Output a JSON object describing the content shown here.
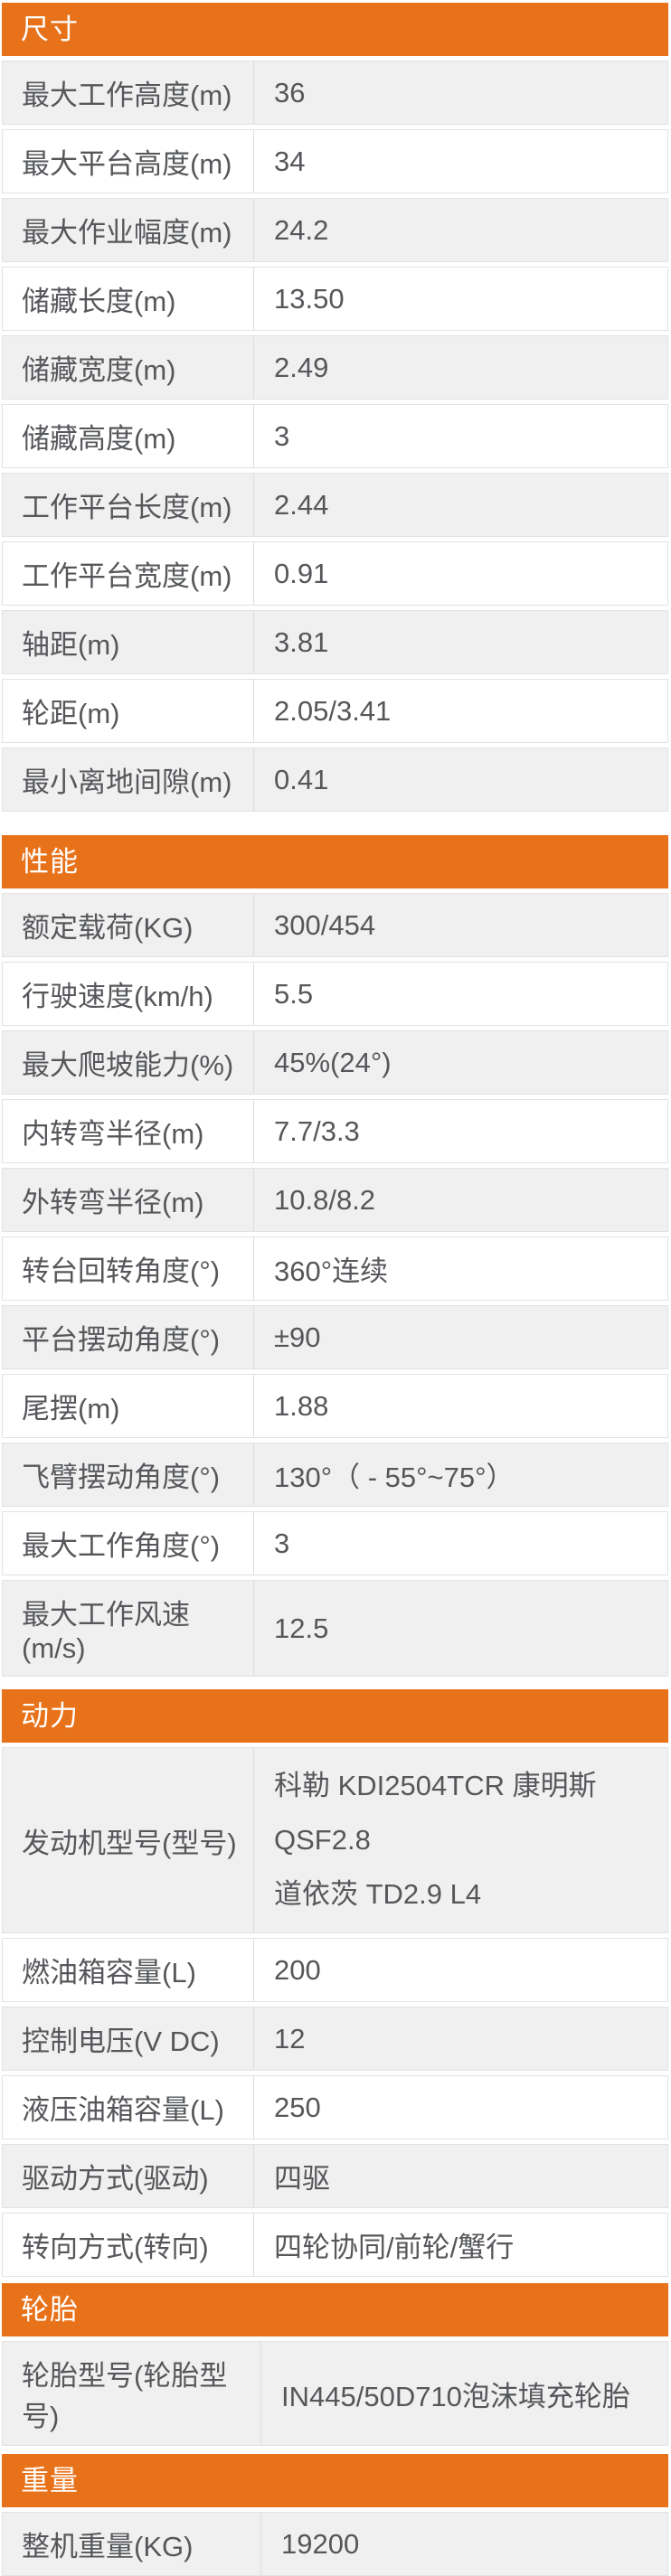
{
  "theme": {
    "accent_orange": "#e8721a",
    "row_alt_bg": "#f0f0f0",
    "row_bg": "#ffffff",
    "border_color": "#e2e2e6",
    "text_color": "#55575a",
    "header_text_color": "#ffffff",
    "page_bg": "#ffffff"
  },
  "table": {
    "sections": [
      {
        "id": "dimensions",
        "title": "尺寸",
        "rows": [
          {
            "label": "最大工作高度(m)",
            "value": "36"
          },
          {
            "label": "最大平台高度(m)",
            "value": "34"
          },
          {
            "label": "最大作业幅度(m)",
            "value": "24.2"
          },
          {
            "label": "储藏长度(m)",
            "value": "13.50"
          },
          {
            "label": "储藏宽度(m)",
            "value": "2.49"
          },
          {
            "label": "储藏高度(m)",
            "value": "3"
          },
          {
            "label": "工作平台长度(m)",
            "value": "2.44"
          },
          {
            "label": "工作平台宽度(m)",
            "value": "0.91"
          },
          {
            "label": "轴距(m)",
            "value": "3.81"
          },
          {
            "label": "轮距(m)",
            "value": "2.05/3.41"
          },
          {
            "label": "最小离地间隙(m)",
            "value": "0.41"
          }
        ]
      },
      {
        "id": "performance",
        "title": "性能",
        "rows": [
          {
            "label": "额定载荷(KG)",
            "value": "300/454"
          },
          {
            "label": "行驶速度(km/h)",
            "value": "5.5"
          },
          {
            "label": "最大爬坡能力(%)",
            "value": "45%(24°)"
          },
          {
            "label": "内转弯半径(m)",
            "value": "7.7/3.3"
          },
          {
            "label": "外转弯半径(m)",
            "value": "10.8/8.2"
          },
          {
            "label": "转台回转角度(°)",
            "value": "360°连续"
          },
          {
            "label": "平台摆动角度(°)",
            "value": "±90"
          },
          {
            "label": "尾摆(m)",
            "value": "1.88"
          },
          {
            "label": "飞臂摆动角度(°)",
            "value": "130°（ - 55°~75°）"
          },
          {
            "label": "最大工作角度(°)",
            "value": "3"
          },
          {
            "label": "最大工作风速(m/s)",
            "value": "12.5"
          }
        ]
      },
      {
        "id": "power",
        "title": "动力",
        "rows": [
          {
            "label": "发动机型号(型号)",
            "value_lines": [
              "科勒 KDI2504TCR 康明斯 QSF2.8",
              "道依茨 TD2.9 L4"
            ]
          },
          {
            "label": "燃油箱容量(L)",
            "value": "200"
          },
          {
            "label": "控制电压(V DC)",
            "value": "12"
          },
          {
            "label": "液压油箱容量(L)",
            "value": "250"
          },
          {
            "label": "驱动方式(驱动)",
            "value": "四驱"
          },
          {
            "label": "转向方式(转向)",
            "value": "四轮协同/前轮/蟹行"
          }
        ]
      },
      {
        "id": "tires",
        "title": "轮胎",
        "wide_label": true,
        "rows": [
          {
            "label": "轮胎型号(轮胎型号)",
            "value": "IN445/50D710泡沫填充轮胎"
          }
        ]
      },
      {
        "id": "weight",
        "title": "重量",
        "wide_label": true,
        "rows": [
          {
            "label": "整机重量(KG)",
            "value": "19200"
          }
        ]
      }
    ]
  }
}
